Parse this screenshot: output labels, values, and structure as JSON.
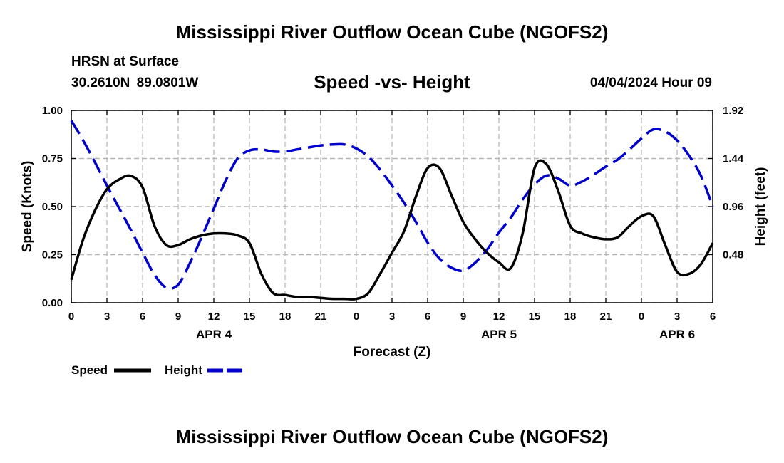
{
  "header": {
    "title": "Mississippi River Outflow Ocean Cube (NGOFS2)",
    "station": "HRSN at Surface",
    "coords": "30.2610N  89.0801W",
    "subtitle": "Speed -vs- Height",
    "issued": "04/04/2024 Hour 09"
  },
  "footer": {
    "title": "Mississippi River Outflow Ocean Cube (NGOFS2)"
  },
  "chart_data": {
    "type": "line",
    "title": "Speed -vs- Height",
    "xlabel": "Forecast (Z)",
    "ylabel": "Speed (Knots)",
    "y2label": "Height (feet)",
    "xlim": [
      0,
      54
    ],
    "ylim": [
      0,
      1
    ],
    "y2lim": [
      0,
      1.92
    ],
    "x_ticks": [
      0,
      3,
      6,
      9,
      12,
      15,
      18,
      21,
      24,
      27,
      30,
      33,
      36,
      39,
      42,
      45,
      48,
      51,
      54
    ],
    "x_tick_labels": [
      "0",
      "3",
      "6",
      "9",
      "12",
      "15",
      "18",
      "21",
      "0",
      "3",
      "6",
      "9",
      "12",
      "15",
      "18",
      "21",
      "0",
      "3",
      "6"
    ],
    "y_ticks": [
      0,
      0.25,
      0.5,
      0.75,
      1.0
    ],
    "y_tick_labels": [
      "0.00",
      "0.25",
      "0.50",
      "0.75",
      "1.00"
    ],
    "y2_ticks": [
      0.48,
      0.96,
      1.44,
      1.92
    ],
    "y2_tick_labels": [
      "0.48",
      "0.96",
      "1.44",
      "1.92"
    ],
    "date_labels": [
      {
        "x": 12,
        "label": "APR 4"
      },
      {
        "x": 36,
        "label": "APR 5"
      },
      {
        "x": 51,
        "label": "APR 6"
      }
    ],
    "grid": true,
    "legend": [
      "Speed",
      "Height"
    ],
    "series": [
      {
        "name": "Speed",
        "axis": "left",
        "color": "#000000",
        "dash": false,
        "x": [
          0,
          1,
          2,
          3,
          4,
          5,
          6,
          7,
          8,
          9,
          10,
          11,
          12,
          13,
          14,
          15,
          16,
          17,
          18,
          19,
          20,
          21,
          22,
          23,
          24,
          25,
          26,
          27,
          28,
          29,
          30,
          31,
          32,
          33,
          34,
          35,
          36,
          37,
          38,
          39,
          40,
          41,
          42,
          43,
          44,
          45,
          46,
          47,
          48,
          49,
          50,
          51,
          52,
          53,
          54
        ],
        "values": [
          0.12,
          0.33,
          0.48,
          0.59,
          0.64,
          0.66,
          0.6,
          0.4,
          0.3,
          0.3,
          0.33,
          0.35,
          0.36,
          0.36,
          0.35,
          0.31,
          0.15,
          0.05,
          0.04,
          0.03,
          0.03,
          0.025,
          0.02,
          0.02,
          0.02,
          0.05,
          0.15,
          0.26,
          0.37,
          0.55,
          0.7,
          0.7,
          0.56,
          0.42,
          0.33,
          0.26,
          0.21,
          0.18,
          0.36,
          0.7,
          0.72,
          0.58,
          0.4,
          0.36,
          0.34,
          0.33,
          0.34,
          0.4,
          0.45,
          0.45,
          0.3,
          0.16,
          0.15,
          0.2,
          0.31
        ]
      },
      {
        "name": "Height",
        "axis": "right",
        "color": "#0000cc",
        "dash": true,
        "x": [
          0,
          1,
          2,
          3,
          4,
          5,
          6,
          7,
          8,
          9,
          10,
          11,
          12,
          13,
          14,
          15,
          16,
          17,
          18,
          19,
          20,
          21,
          22,
          23,
          24,
          25,
          26,
          27,
          28,
          29,
          30,
          31,
          32,
          33,
          34,
          35,
          36,
          37,
          38,
          39,
          40,
          41,
          42,
          43,
          44,
          45,
          46,
          47,
          48,
          49,
          50,
          51,
          52,
          53,
          54
        ],
        "values": [
          1.82,
          1.62,
          1.4,
          1.17,
          0.95,
          0.73,
          0.5,
          0.28,
          0.15,
          0.18,
          0.4,
          0.66,
          0.94,
          1.22,
          1.44,
          1.52,
          1.53,
          1.51,
          1.51,
          1.53,
          1.55,
          1.57,
          1.58,
          1.58,
          1.54,
          1.46,
          1.33,
          1.17,
          1.0,
          0.81,
          0.6,
          0.44,
          0.35,
          0.32,
          0.4,
          0.53,
          0.7,
          0.85,
          1.03,
          1.18,
          1.27,
          1.24,
          1.17,
          1.21,
          1.28,
          1.36,
          1.43,
          1.53,
          1.64,
          1.73,
          1.71,
          1.62,
          1.47,
          1.27,
          0.96
        ]
      }
    ]
  }
}
